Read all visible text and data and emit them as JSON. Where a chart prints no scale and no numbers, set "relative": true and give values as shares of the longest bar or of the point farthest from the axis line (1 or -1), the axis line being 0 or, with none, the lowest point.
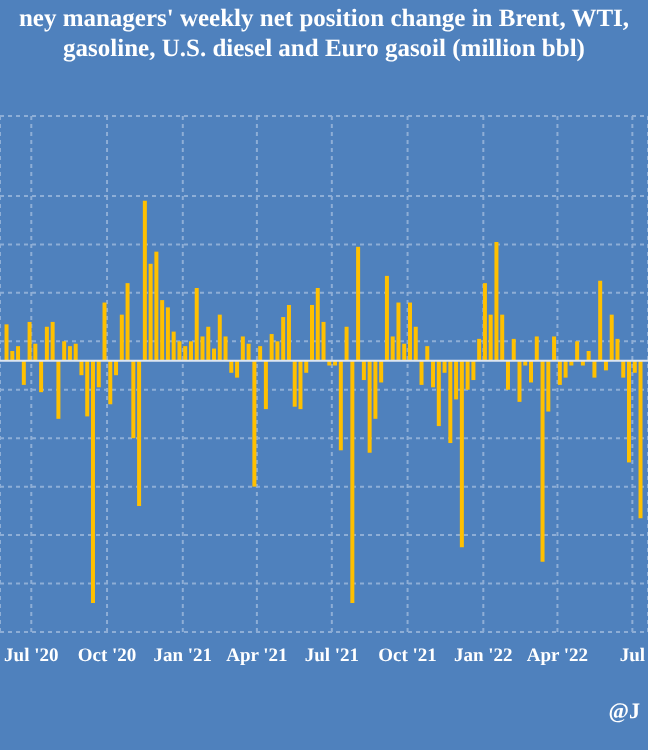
{
  "chart_data": {
    "type": "bar",
    "title": "ney managers' weekly net position change in Brent, WTI,",
    "subtitle": "gasoline, U.S. diesel and Euro gasoil (million bbl)",
    "relative": true,
    "color": "#ffc000",
    "grid": true,
    "x": [
      "2020-06-02",
      "2020-06-09",
      "2020-06-16",
      "2020-06-23",
      "2020-06-30",
      "2020-07-07",
      "2020-07-14",
      "2020-07-21",
      "2020-07-28",
      "2020-08-04",
      "2020-08-11",
      "2020-08-18",
      "2020-08-25",
      "2020-09-01",
      "2020-09-08",
      "2020-09-15",
      "2020-09-22",
      "2020-09-29",
      "2020-10-06",
      "2020-10-13",
      "2020-10-20",
      "2020-10-27",
      "2020-11-03",
      "2020-11-10",
      "2020-11-17",
      "2020-11-24",
      "2020-12-01",
      "2020-12-08",
      "2020-12-15",
      "2020-12-22",
      "2020-12-29",
      "2021-01-05",
      "2021-01-12",
      "2021-01-19",
      "2021-01-26",
      "2021-02-02",
      "2021-02-09",
      "2021-02-16",
      "2021-02-23",
      "2021-03-02",
      "2021-03-09",
      "2021-03-16",
      "2021-03-23",
      "2021-03-30",
      "2021-04-06",
      "2021-04-13",
      "2021-04-20",
      "2021-04-27",
      "2021-05-04",
      "2021-05-11",
      "2021-05-18",
      "2021-05-25",
      "2021-06-01",
      "2021-06-08",
      "2021-06-15",
      "2021-06-22",
      "2021-06-29",
      "2021-07-06",
      "2021-07-13",
      "2021-07-20",
      "2021-07-27",
      "2021-08-03",
      "2021-08-10",
      "2021-08-17",
      "2021-08-24",
      "2021-08-31",
      "2021-09-07",
      "2021-09-14",
      "2021-09-21",
      "2021-09-28",
      "2021-10-05",
      "2021-10-12",
      "2021-10-19",
      "2021-10-26",
      "2021-11-02",
      "2021-11-09",
      "2021-11-16",
      "2021-11-23",
      "2021-11-30",
      "2021-12-07",
      "2021-12-14",
      "2021-12-21",
      "2021-12-28",
      "2022-01-04",
      "2022-01-11",
      "2022-01-18",
      "2022-01-25",
      "2022-02-01",
      "2022-02-08",
      "2022-02-15",
      "2022-02-22",
      "2022-03-01",
      "2022-03-08",
      "2022-03-15",
      "2022-03-22",
      "2022-03-29",
      "2022-04-05",
      "2022-04-12",
      "2022-04-19",
      "2022-04-26",
      "2022-05-03",
      "2022-05-10",
      "2022-05-17",
      "2022-05-24",
      "2022-05-31",
      "2022-06-07",
      "2022-06-14",
      "2022-06-21",
      "2022-06-28",
      "2022-07-05",
      "2022-07-12"
    ],
    "values": [
      0.15,
      0.04,
      0.06,
      -0.1,
      0.16,
      0.07,
      -0.13,
      0.14,
      0.16,
      -0.24,
      0.08,
      0.06,
      0.07,
      -0.06,
      -0.23,
      -1,
      -0.11,
      0.24,
      -0.18,
      -0.06,
      0.19,
      0.32,
      -0.32,
      -0.6,
      0.66,
      0.4,
      0.45,
      0.25,
      0.22,
      0.12,
      0.08,
      0.06,
      0.08,
      0.3,
      0.1,
      0.14,
      0.05,
      0.19,
      0.1,
      -0.05,
      -0.07,
      0.1,
      0.07,
      -0.52,
      0.06,
      -0.2,
      0.11,
      0.08,
      0.18,
      0.23,
      -0.19,
      -0.2,
      -0.05,
      0.23,
      0.3,
      0.16,
      -0.02,
      -0.02,
      -0.37,
      0.14,
      -1,
      0.47,
      -0.08,
      -0.38,
      -0.24,
      -0.09,
      0.35,
      0.1,
      0.24,
      0.07,
      0.24,
      0.14,
      -0.1,
      0.06,
      -0.11,
      -0.27,
      -0.05,
      -0.34,
      -0.16,
      -0.77,
      -0.12,
      -0.08,
      0.09,
      0.32,
      0.19,
      0.49,
      0.19,
      -0.12,
      0.09,
      -0.17,
      -0.02,
      -0.09,
      0.1,
      -0.83,
      -0.21,
      0.1,
      -0.1,
      -0.07,
      -0.02,
      0.08,
      -0.02,
      0.04,
      -0.07,
      0.33,
      -0.04,
      0.19,
      0.09,
      -0.07,
      -0.42,
      -0.05,
      -0.65
    ],
    "xlim": [
      "2020-05-24",
      "2022-07-20"
    ],
    "xticks": [
      {
        "value": "2020-07-01",
        "label": "Jul '20"
      },
      {
        "value": "2020-10-01",
        "label": "Oct '20"
      },
      {
        "value": "2021-01-01",
        "label": "Jan '21"
      },
      {
        "value": "2021-04-01",
        "label": "Apr '21"
      },
      {
        "value": "2021-07-01",
        "label": "Jul '21"
      },
      {
        "value": "2021-10-01",
        "label": "Oct '21"
      },
      {
        "value": "2022-01-01",
        "label": "Jan '22"
      },
      {
        "value": "2022-04-01",
        "label": "Apr '22"
      },
      {
        "value": "2022-07-01",
        "label": "Jul"
      }
    ],
    "annotations": [
      "@J"
    ]
  }
}
